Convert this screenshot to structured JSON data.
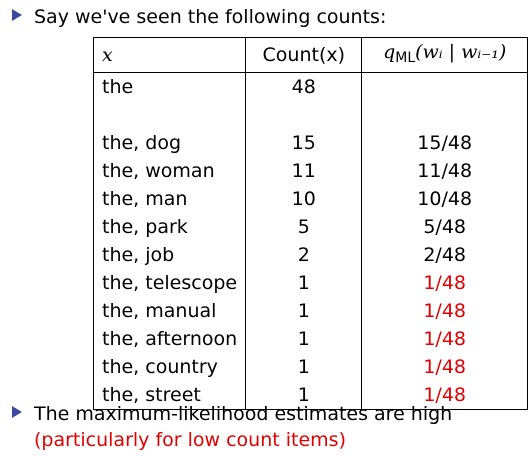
{
  "intro": "Say we've seen the following counts:",
  "table": {
    "headers": {
      "x": "x",
      "count": "Count(x)",
      "q_main": "q",
      "q_sub": "ML",
      "q_args": "(wᵢ | wᵢ₋₁)"
    },
    "rows": [
      {
        "x": "the",
        "count": "48",
        "q": ""
      },
      {
        "x": "",
        "count": "",
        "q": ""
      },
      {
        "x": "the, dog",
        "count": "15",
        "q": "15/48"
      },
      {
        "x": "the, woman",
        "count": "11",
        "q": "11/48"
      },
      {
        "x": "the, man",
        "count": "10",
        "q": "10/48"
      },
      {
        "x": "the, park",
        "count": "5",
        "q": "5/48"
      },
      {
        "x": "the, job",
        "count": "2",
        "q": "2/48"
      },
      {
        "x": "the, telescope",
        "count": "1",
        "q": "1/48"
      },
      {
        "x": "the, manual",
        "count": "1",
        "q": "1/48"
      },
      {
        "x": "the, afternoon",
        "count": "1",
        "q": "1/48"
      },
      {
        "x": "the, country",
        "count": "1",
        "q": "1/48"
      },
      {
        "x": "the, street",
        "count": "1",
        "q": "1/48"
      }
    ],
    "highlight_color": "#e00000"
  },
  "conclusion": {
    "text": "The maximum-likelihood estimates are high",
    "open_paren": "(",
    "highlight": "particularly for low count items",
    "close_paren": ")"
  },
  "colors": {
    "bullet": "#3a4aa0",
    "highlight": "#e00000"
  },
  "icons": {
    "bullet": "triangle-bullet-icon"
  }
}
